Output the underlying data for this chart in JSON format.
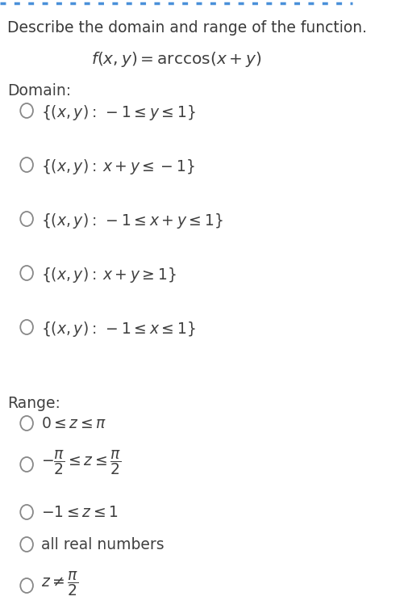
{
  "title": "Describe the domain and range of the function.",
  "function": "$f(x, y) = \\mathrm{arccos}(x + y)$",
  "domain_label": "Domain:",
  "domain_options": [
    "$\\{(x, y):\\: -1 \\leq y \\leq 1\\}$",
    "$\\{(x, y):\\: x + y \\leq -1\\}$",
    "$\\{(x, y):\\: -1 \\leq x + y \\leq 1\\}$",
    "$\\{(x, y):\\: x + y \\geq 1\\}$",
    "$\\{(x, y):\\: -1 \\leq x \\leq 1\\}$"
  ],
  "range_label": "Range:",
  "range_options": [
    "$0 \\leq z \\leq \\pi$",
    "$-\\dfrac{\\pi}{2} \\leq z \\leq \\dfrac{\\pi}{2}$",
    "$-1 \\leq z \\leq 1$",
    "all real numbers",
    "$z \\neq \\dfrac{\\pi}{2}$"
  ],
  "bg_color": "#ffffff",
  "text_color": "#404040",
  "title_color": "#3a3a3a",
  "border_color": "#4a90d9",
  "circle_color": "#888888",
  "font_size": 13.5,
  "title_font_size": 13.5
}
